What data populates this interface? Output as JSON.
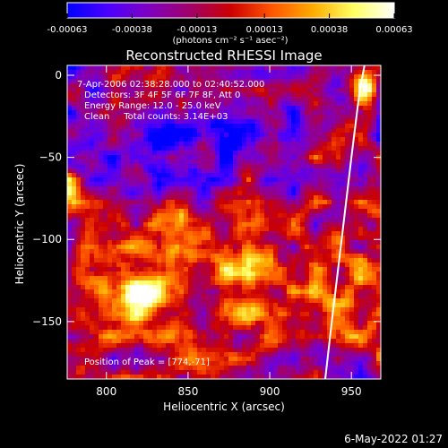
{
  "colorbar": {
    "tick_labels": [
      "-0.00063",
      "-0.00038",
      "-0.00013",
      "0.00013",
      "0.00038",
      "0.00063"
    ],
    "tick_values": [
      -0.00063,
      -0.00038,
      -0.00013,
      0.00013,
      0.00038,
      0.00063
    ],
    "range": [
      -0.00063,
      0.00063
    ],
    "units_label": "(photons cm⁻² s⁻¹ asec⁻²)",
    "colormap_stops": [
      "#0000ff",
      "#4b00ff",
      "#8000c0",
      "#a0006a",
      "#cc0000",
      "#ff5500",
      "#ffaa00",
      "#ffff60",
      "#ffffff"
    ]
  },
  "chart_data": {
    "type": "heatmap",
    "title": "Reconstructed RHESSI Image",
    "xlabel": "Heliocentric X (arcsec)",
    "ylabel": "Heliocentric Y (arcsec)",
    "xlim": [
      776,
      968
    ],
    "ylim": [
      -185,
      6
    ],
    "xticks": [
      800,
      850,
      900,
      950
    ],
    "yticks": [
      0,
      -50,
      -100,
      -150
    ],
    "xtick_labels": [
      "800",
      "850",
      "900",
      "950"
    ],
    "ytick_labels": [
      "0",
      "−50",
      "−100",
      "−150"
    ],
    "grid": false,
    "annotations": {
      "time_range": "7-Apr-2006 02:38:28.000 to 02:40:52.000",
      "detectors": "Detectors: 3F 4F 5F 6F 7F 8F, Att 0",
      "energy": "Energy Range: 12.0 - 25.0 keV",
      "method": "Clean     Total counts: 3.14E+03",
      "peak": "Position of Peak = [774,-71]"
    },
    "limb_curve_points": [
      [
        934,
        -185
      ],
      [
        938,
        -150
      ],
      [
        944,
        -100
      ],
      [
        950,
        -50
      ],
      [
        955,
        -10
      ],
      [
        958,
        6
      ]
    ],
    "limb_color": "#ffffff"
  },
  "footer": {
    "date": "6-May-2022 01:27"
  }
}
